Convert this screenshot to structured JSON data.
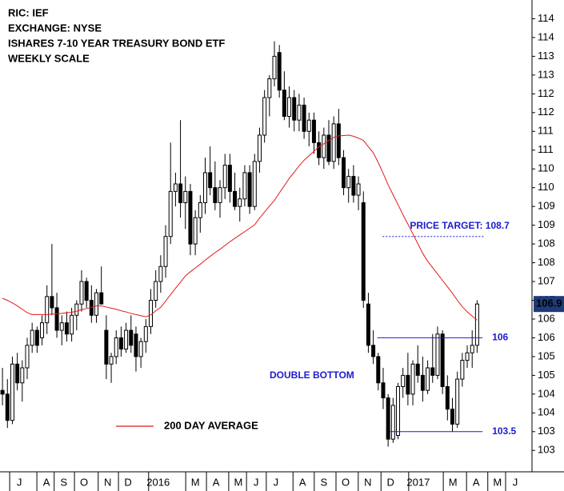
{
  "chart_data": {
    "type": "candlestick",
    "title_lines": [
      "RIC: IEF",
      "EXCHANGE: NYSE",
      "ISHARES 7-10 YEAR TREASURY BOND ETF",
      "WEEKLY SCALE"
    ],
    "xlim": [
      -0.5,
      107.1
    ],
    "ylim": [
      102.43,
      115
    ],
    "yticks": [
      {
        "value": 114.5,
        "label": "114"
      },
      114,
      {
        "value": 113.5,
        "label": "113"
      },
      113,
      {
        "value": 112.5,
        "label": "112"
      },
      112,
      {
        "value": 111.5,
        "label": "111"
      },
      111,
      {
        "value": 110.5,
        "label": "110"
      },
      110,
      {
        "value": 109.5,
        "label": "109"
      },
      109,
      {
        "value": 108.5,
        "label": "108"
      },
      108,
      {
        "value": 107.5,
        "label": "107"
      },
      107,
      {
        "value": 106.5,
        "label": "106"
      },
      106,
      {
        "value": 105.5,
        "label": "105"
      },
      105,
      {
        "value": 104.5,
        "label": "104"
      },
      104,
      {
        "value": 103.5,
        "label": "103"
      },
      103
    ],
    "xticks": [
      {
        "value": 3.4,
        "label": "J"
      },
      {
        "value": 8.9,
        "label": "A"
      },
      {
        "value": 12.4,
        "label": "S"
      },
      {
        "value": 16.5,
        "label": "O"
      },
      {
        "value": 21.3,
        "label": "N"
      },
      {
        "value": 25.4,
        "label": "D"
      },
      {
        "value": 31.5,
        "label": "2016"
      },
      {
        "value": 39,
        "label": "M"
      },
      {
        "value": 43.2,
        "label": "A"
      },
      {
        "value": 47.7,
        "label": "M"
      },
      {
        "value": 51.3,
        "label": "J"
      },
      {
        "value": 55.3,
        "label": "J"
      },
      {
        "value": 60.7,
        "label": "A"
      },
      {
        "value": 65,
        "label": "S"
      },
      {
        "value": 69.4,
        "label": "O"
      },
      {
        "value": 73.9,
        "label": "N"
      },
      {
        "value": 78.5,
        "label": "D"
      },
      {
        "value": 84.1,
        "label": "2017"
      },
      {
        "value": 91.1,
        "label": "M"
      },
      {
        "value": 95.8,
        "label": "A"
      },
      {
        "value": 100.1,
        "label": "M"
      },
      {
        "value": 103.7,
        "label": "J"
      }
    ],
    "candles": {
      "up_color": "#ffffff",
      "down_color": "#000000",
      "open": [
        104.6,
        104.5,
        103.8,
        105.3,
        104.8,
        105.2,
        105.8,
        106.2,
        106.0,
        106.4,
        107.1,
        106.8,
        106.2,
        106.4,
        106.1,
        106.6,
        106.9,
        107.5,
        107.0,
        106.6,
        107.2,
        106.2,
        105.3,
        105.5,
        106.0,
        105.7,
        106.2,
        106.1,
        105.5,
        105.9,
        106.3,
        107.0,
        107.5,
        107.9,
        108.7,
        109.9,
        110.1,
        109.6,
        109.9,
        108.5,
        109.2,
        109.6,
        110.4,
        110.0,
        109.6,
        110.0,
        110.6,
        109.9,
        109.5,
        109.7,
        110.4,
        109.5,
        110.7,
        111.4,
        112.4,
        112.9,
        113.6,
        112.6,
        111.9,
        112.4,
        111.8,
        112.2,
        111.5,
        111.8,
        111.2,
        110.8,
        111.4,
        110.7,
        111.7,
        110.8,
        110.0,
        110.3,
        109.8,
        109.6,
        106.9,
        105.8,
        105.5,
        104.8,
        104.4,
        103.3,
        103.4,
        104.7,
        105.0,
        104.5,
        105.3,
        105.0,
        104.6,
        105.2,
        105.0,
        106.1,
        104.7,
        104.1,
        103.7,
        104.9,
        105.4,
        105.6,
        105.8
      ],
      "high": [
        105.2,
        104.9,
        105.5,
        105.6,
        105.4,
        106.0,
        106.4,
        106.3,
        106.6,
        107.4,
        108.5,
        107.2,
        106.6,
        106.7,
        106.8,
        107.0,
        107.8,
        107.6,
        107.4,
        107.3,
        107.9,
        106.6,
        105.6,
        106.2,
        106.3,
        106.4,
        106.6,
        106.3,
        106.0,
        106.5,
        107.3,
        107.8,
        108.2,
        109.0,
        111.2,
        110.4,
        111.8,
        110.3,
        110.1,
        109.4,
        109.8,
        110.8,
        111.1,
        110.7,
        110.2,
        110.9,
        110.9,
        110.4,
        110.0,
        110.6,
        110.6,
        110.9,
        111.6,
        112.6,
        113.0,
        113.9,
        113.8,
        113.1,
        112.7,
        112.6,
        112.5,
        112.4,
        112.0,
        112.0,
        111.5,
        111.6,
        111.8,
        111.9,
        112.1,
        111.0,
        110.5,
        110.6,
        110.3,
        109.9,
        107.2,
        106.2,
        105.6,
        105.2,
        104.5,
        104.4,
        104.8,
        105.2,
        105.6,
        105.4,
        105.8,
        105.5,
        105.4,
        106.1,
        106.3,
        106.2,
        105.0,
        104.4,
        105.1,
        105.6,
        105.8,
        106.2,
        107.0
      ],
      "low": [
        104.2,
        103.6,
        103.7,
        104.6,
        104.3,
        104.9,
        105.6,
        105.6,
        105.8,
        106.1,
        106.6,
        106.0,
        105.8,
        105.9,
        105.9,
        106.2,
        106.7,
        106.8,
        106.4,
        106.4,
        106.9,
        104.9,
        104.8,
        105.3,
        105.5,
        105.6,
        105.6,
        105.1,
        105.2,
        105.6,
        106.1,
        106.8,
        107.2,
        107.6,
        108.5,
        109.5,
        109.2,
        108.9,
        108.2,
        108.2,
        108.8,
        109.3,
        109.8,
        109.4,
        109.2,
        109.7,
        109.6,
        109.4,
        109.1,
        109.5,
        109.3,
        109.4,
        110.4,
        111.2,
        111.9,
        112.7,
        112.4,
        111.8,
        111.6,
        111.5,
        111.5,
        111.3,
        111.1,
        110.9,
        110.6,
        110.5,
        110.6,
        110.5,
        110.6,
        109.8,
        109.6,
        109.6,
        109.4,
        106.8,
        105.6,
        105.3,
        104.6,
        104.1,
        103.1,
        103.2,
        103.3,
        104.4,
        104.2,
        104.2,
        104.8,
        104.3,
        104.5,
        104.8,
        104.9,
        104.5,
        103.8,
        103.5,
        103.6,
        104.7,
        105.2,
        105.2,
        105.6
      ],
      "close": [
        104.5,
        103.8,
        105.3,
        104.8,
        105.2,
        105.8,
        106.2,
        105.8,
        106.4,
        107.1,
        106.8,
        106.2,
        106.4,
        106.1,
        106.6,
        106.9,
        107.5,
        107.0,
        106.6,
        107.2,
        106.9,
        105.3,
        105.5,
        106.0,
        105.7,
        106.2,
        105.8,
        105.5,
        105.9,
        106.3,
        107.0,
        107.5,
        107.9,
        108.7,
        109.9,
        110.1,
        109.6,
        109.9,
        108.5,
        109.2,
        109.6,
        110.4,
        110.0,
        109.6,
        110.0,
        110.6,
        109.9,
        109.5,
        109.7,
        110.4,
        109.5,
        110.7,
        111.4,
        112.4,
        112.9,
        113.5,
        112.6,
        111.9,
        112.4,
        111.8,
        112.2,
        111.5,
        111.8,
        111.2,
        110.8,
        111.4,
        110.7,
        111.7,
        110.8,
        110.0,
        110.3,
        109.8,
        110.1,
        107.0,
        105.8,
        105.5,
        104.8,
        104.4,
        103.3,
        104.2,
        104.7,
        105.0,
        104.5,
        105.3,
        105.0,
        104.6,
        105.2,
        105.0,
        106.1,
        104.7,
        104.1,
        103.7,
        104.9,
        105.4,
        105.6,
        105.8,
        106.9
      ]
    },
    "series": [
      {
        "name": "200 DAY AVERAGE",
        "color": "#e31a1a",
        "values": [
          107.05,
          107.0,
          106.93,
          106.85,
          106.76,
          106.67,
          106.62,
          106.62,
          106.62,
          106.62,
          106.63,
          106.64,
          106.65,
          106.67,
          106.68,
          106.71,
          106.75,
          106.78,
          106.81,
          106.85,
          106.85,
          106.82,
          106.79,
          106.76,
          106.72,
          106.69,
          106.65,
          106.62,
          106.59,
          106.56,
          106.61,
          106.72,
          106.81,
          106.98,
          107.15,
          107.32,
          107.48,
          107.65,
          107.76,
          107.86,
          107.96,
          108.07,
          108.17,
          108.27,
          108.36,
          108.46,
          108.56,
          108.65,
          108.74,
          108.83,
          108.92,
          109.01,
          109.19,
          109.35,
          109.51,
          109.66,
          109.86,
          110.05,
          110.25,
          110.41,
          110.58,
          110.73,
          110.85,
          110.97,
          111.09,
          111.17,
          111.26,
          111.34,
          111.38,
          111.39,
          111.4,
          111.37,
          111.32,
          111.26,
          111.09,
          110.93,
          110.67,
          110.38,
          110.08,
          109.81,
          109.55,
          109.28,
          109.03,
          108.77,
          108.51,
          108.25,
          108.04,
          107.87,
          107.7,
          107.53,
          107.36,
          107.19,
          107.0,
          106.83,
          106.69,
          106.58,
          106.47
        ]
      }
    ],
    "levels": [
      {
        "label": "PRICE TARGET: 108.7",
        "value": 108.7,
        "x_range": [
          76.9,
          97.3
        ],
        "dashed": true
      },
      {
        "label": "106",
        "value": 106,
        "x_range": [
          75.8,
          97.1
        ],
        "dashed": false
      },
      {
        "label": "103.5",
        "value": 103.5,
        "x_range": [
          78.3,
          97.1
        ],
        "dashed": false
      }
    ],
    "pattern_label": "DOUBLE BOTTOM",
    "last_price": 106.9,
    "annotation_color": "#1c1cd0"
  }
}
